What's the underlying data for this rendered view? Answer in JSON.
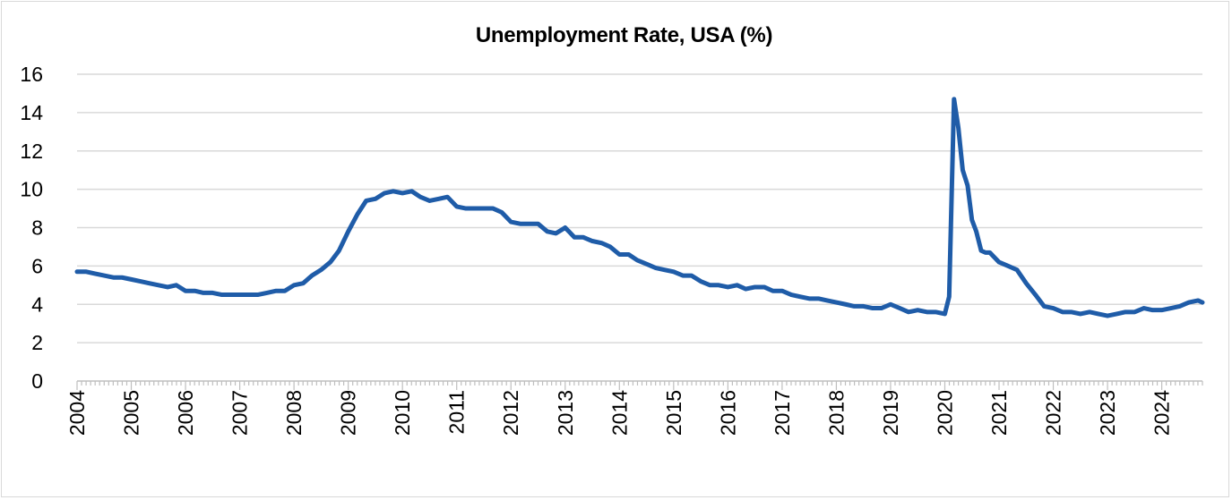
{
  "chart_data": {
    "type": "line",
    "title": "Unemployment Rate, USA (%)",
    "xlabel": "",
    "ylabel": "",
    "ylim": [
      0,
      16
    ],
    "yticks": [
      "0",
      "2",
      "4",
      "6",
      "8",
      "10",
      "12",
      "14",
      "16"
    ],
    "xlim": [
      2004.0,
      2024.75
    ],
    "xticks": [
      "2004",
      "2005",
      "2006",
      "2007",
      "2008",
      "2009",
      "2010",
      "2011",
      "2012",
      "2013",
      "2014",
      "2015",
      "2016",
      "2017",
      "2018",
      "2019",
      "2020",
      "2021",
      "2022",
      "2023",
      "2024"
    ],
    "grid": "horizontal",
    "legend": "none",
    "series": [
      {
        "color": "#1f5ca8",
        "x": [
          2004.0,
          2004.17,
          2004.33,
          2004.5,
          2004.67,
          2004.83,
          2005.0,
          2005.17,
          2005.33,
          2005.5,
          2005.67,
          2005.83,
          2006.0,
          2006.17,
          2006.33,
          2006.5,
          2006.67,
          2006.83,
          2007.0,
          2007.17,
          2007.33,
          2007.5,
          2007.67,
          2007.83,
          2008.0,
          2008.17,
          2008.33,
          2008.5,
          2008.67,
          2008.83,
          2009.0,
          2009.17,
          2009.33,
          2009.5,
          2009.67,
          2009.83,
          2010.0,
          2010.17,
          2010.33,
          2010.5,
          2010.67,
          2010.83,
          2011.0,
          2011.17,
          2011.33,
          2011.5,
          2011.67,
          2011.83,
          2012.0,
          2012.17,
          2012.33,
          2012.5,
          2012.67,
          2012.83,
          2013.0,
          2013.17,
          2013.33,
          2013.5,
          2013.67,
          2013.83,
          2014.0,
          2014.17,
          2014.33,
          2014.5,
          2014.67,
          2014.83,
          2015.0,
          2015.17,
          2015.33,
          2015.5,
          2015.67,
          2015.83,
          2016.0,
          2016.17,
          2016.33,
          2016.5,
          2016.67,
          2016.83,
          2017.0,
          2017.17,
          2017.33,
          2017.5,
          2017.67,
          2017.83,
          2018.0,
          2018.17,
          2018.33,
          2018.5,
          2018.67,
          2018.83,
          2019.0,
          2019.17,
          2019.33,
          2019.5,
          2019.67,
          2019.83,
          2020.0,
          2020.08,
          2020.17,
          2020.25,
          2020.33,
          2020.42,
          2020.5,
          2020.58,
          2020.67,
          2020.75,
          2020.83,
          2021.0,
          2021.17,
          2021.33,
          2021.5,
          2021.67,
          2021.83,
          2022.0,
          2022.17,
          2022.33,
          2022.5,
          2022.67,
          2022.83,
          2023.0,
          2023.17,
          2023.33,
          2023.5,
          2023.67,
          2023.83,
          2024.0,
          2024.17,
          2024.33,
          2024.5,
          2024.67,
          2024.75
        ],
        "values": [
          5.7,
          5.7,
          5.6,
          5.5,
          5.4,
          5.4,
          5.3,
          5.2,
          5.1,
          5.0,
          4.9,
          5.0,
          4.7,
          4.7,
          4.6,
          4.6,
          4.5,
          4.5,
          4.5,
          4.5,
          4.5,
          4.6,
          4.7,
          4.7,
          5.0,
          5.1,
          5.5,
          5.8,
          6.2,
          6.8,
          7.8,
          8.7,
          9.4,
          9.5,
          9.8,
          9.9,
          9.8,
          9.9,
          9.6,
          9.4,
          9.5,
          9.6,
          9.1,
          9.0,
          9.0,
          9.0,
          9.0,
          8.8,
          8.3,
          8.2,
          8.2,
          8.2,
          7.8,
          7.7,
          8.0,
          7.5,
          7.5,
          7.3,
          7.2,
          7.0,
          6.6,
          6.6,
          6.3,
          6.1,
          5.9,
          5.8,
          5.7,
          5.5,
          5.5,
          5.2,
          5.0,
          5.0,
          4.9,
          5.0,
          4.8,
          4.9,
          4.9,
          4.7,
          4.7,
          4.5,
          4.4,
          4.3,
          4.3,
          4.2,
          4.1,
          4.0,
          3.9,
          3.9,
          3.8,
          3.8,
          4.0,
          3.8,
          3.6,
          3.7,
          3.6,
          3.6,
          3.5,
          4.4,
          14.7,
          13.2,
          11.0,
          10.2,
          8.4,
          7.8,
          6.8,
          6.7,
          6.7,
          6.2,
          6.0,
          5.8,
          5.1,
          4.5,
          3.9,
          3.8,
          3.6,
          3.6,
          3.5,
          3.6,
          3.5,
          3.4,
          3.5,
          3.6,
          3.6,
          3.8,
          3.7,
          3.7,
          3.8,
          3.9,
          4.1,
          4.2,
          4.1
        ]
      }
    ]
  }
}
